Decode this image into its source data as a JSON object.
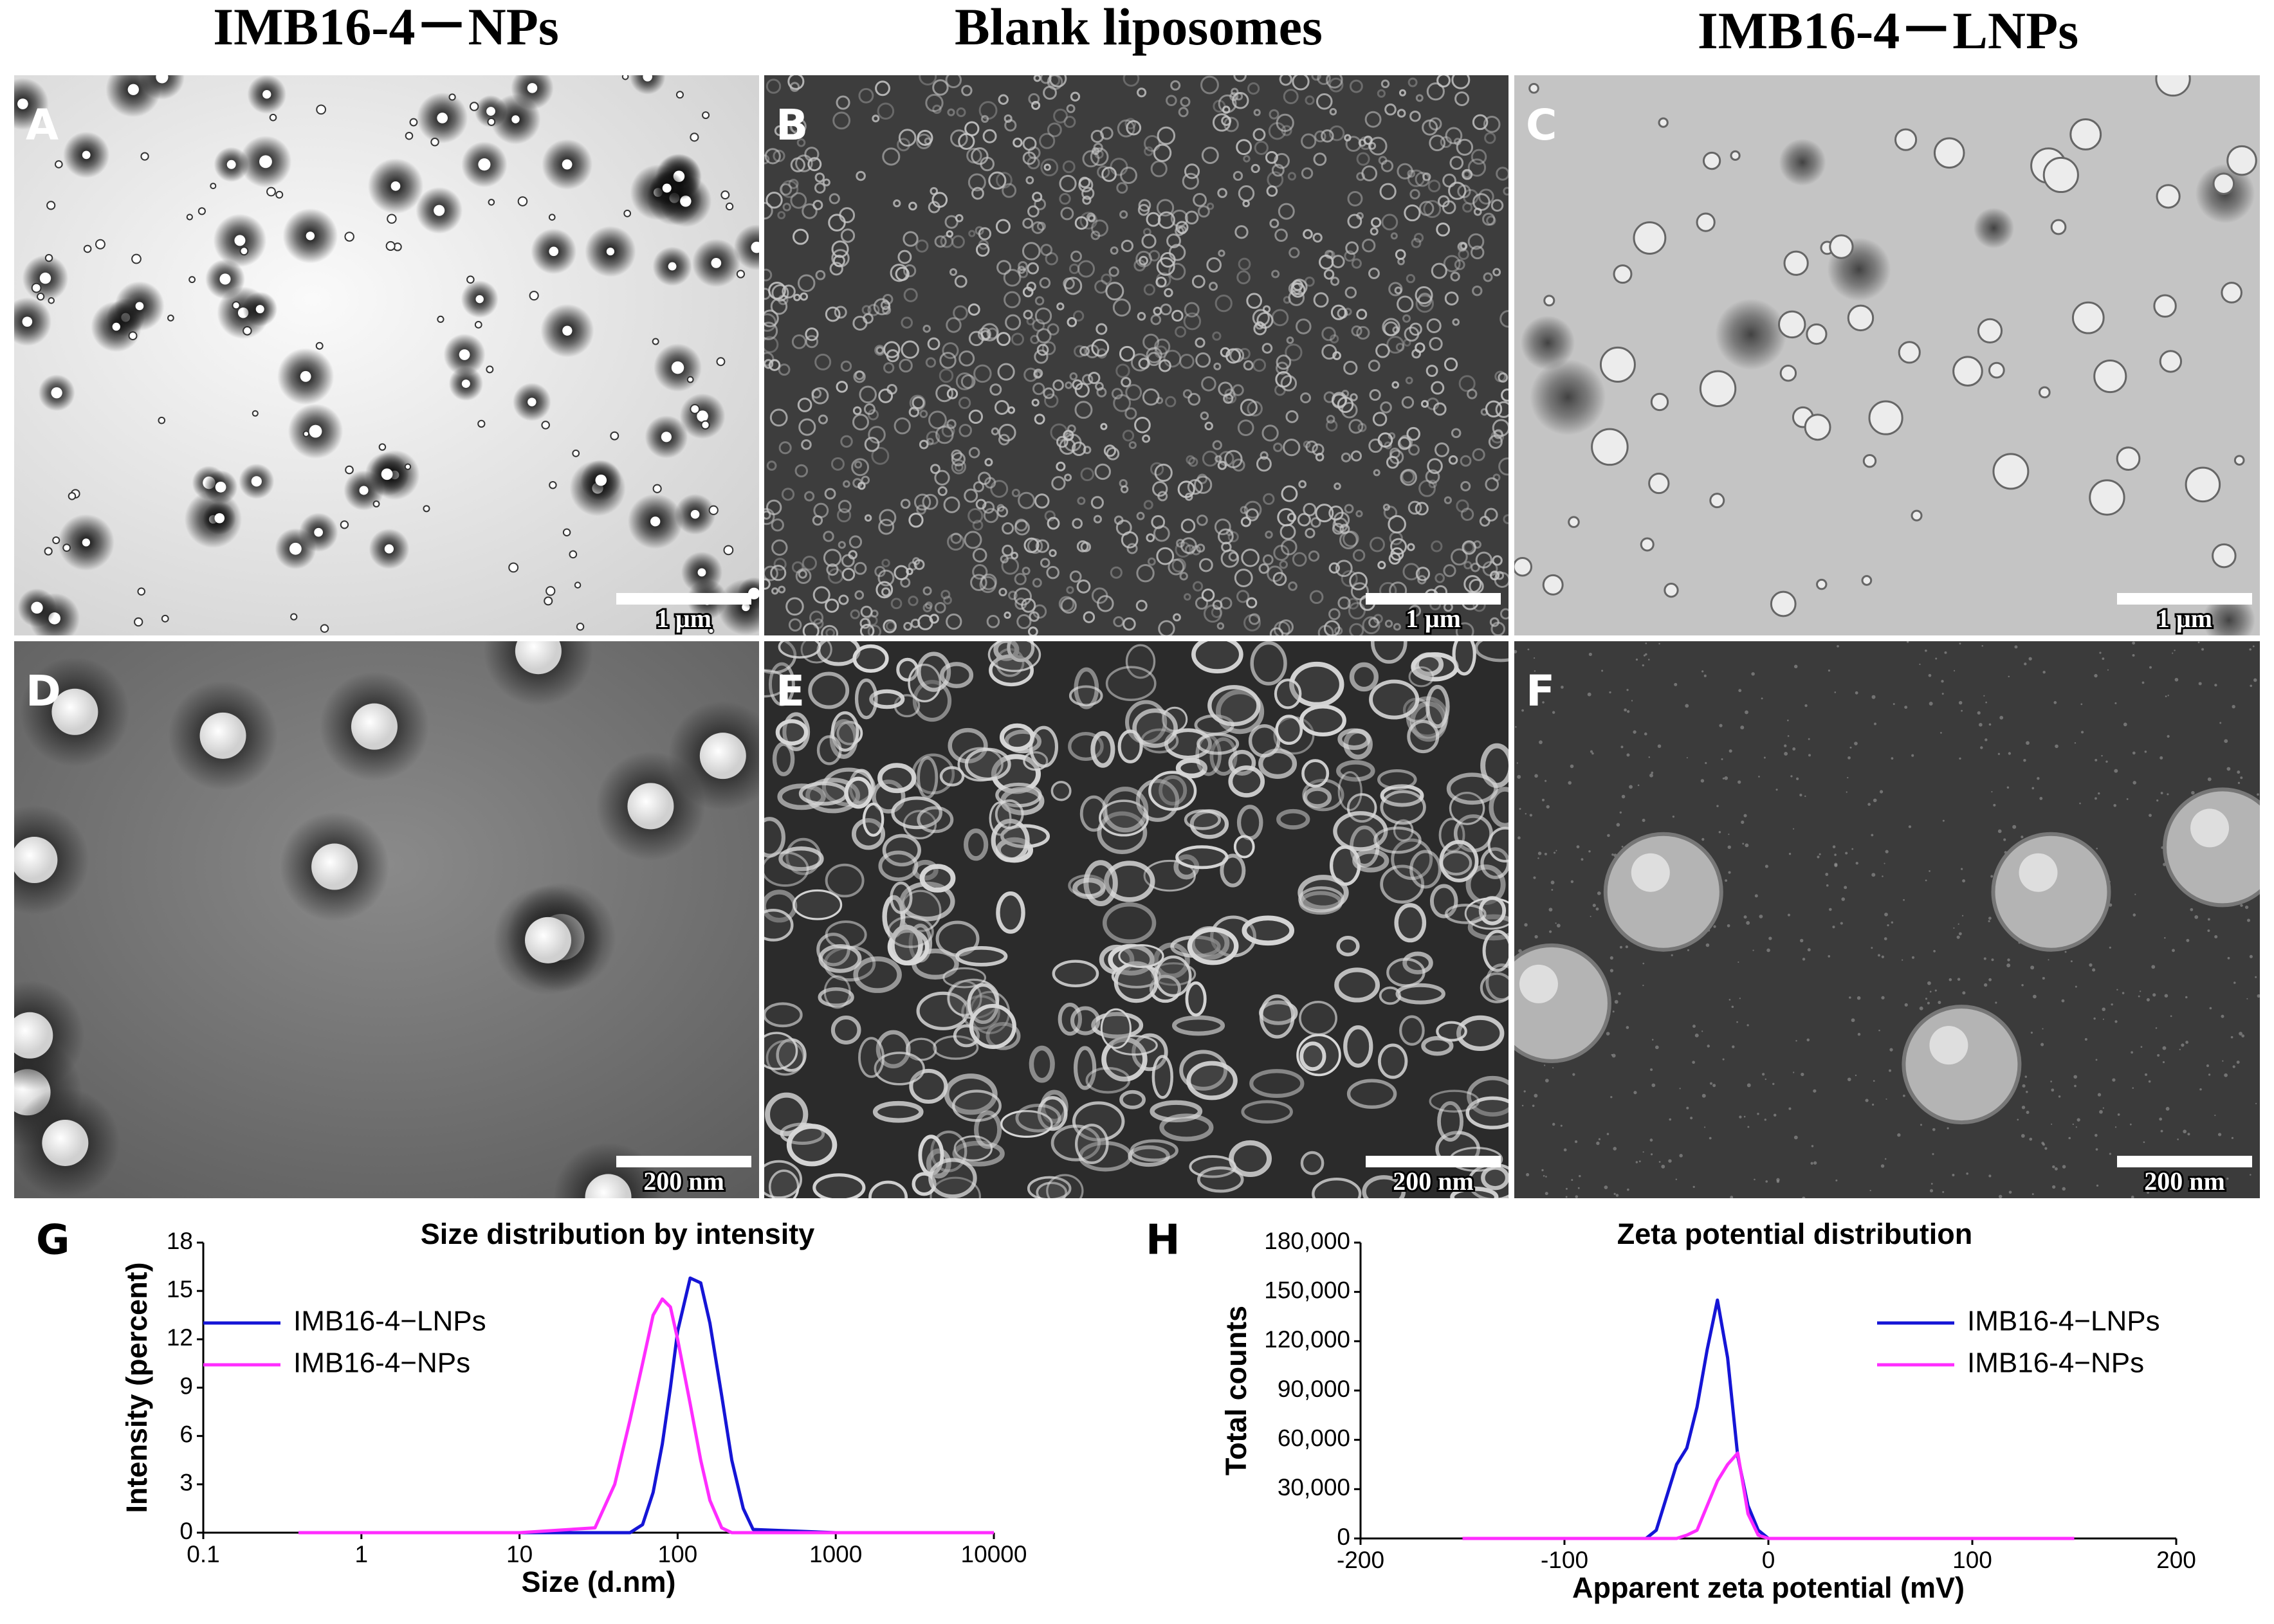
{
  "column_titles": [
    "IMB16-4－NPs",
    "Blank liposomes",
    "IMB16-4－LNPs"
  ],
  "panels": [
    {
      "label": "A",
      "scale_bar": "1 μm"
    },
    {
      "label": "B",
      "scale_bar": "1 μm"
    },
    {
      "label": "C",
      "scale_bar": "1 μm"
    },
    {
      "label": "D",
      "scale_bar": "200 nm"
    },
    {
      "label": "E",
      "scale_bar": "200 nm"
    },
    {
      "label": "F",
      "scale_bar": "200 nm"
    }
  ],
  "chart_data": [
    {
      "type": "line",
      "panel_label": "G",
      "title": "Size distribution by intensity",
      "x_label": "Size (d.nm)",
      "y_label": "Intensity (percent)",
      "xscale": "log",
      "xlim": [
        0.1,
        10000
      ],
      "xticks": [
        0.1,
        1,
        10,
        100,
        1000,
        10000
      ],
      "ylim": [
        0,
        18
      ],
      "yticks": [
        0,
        3,
        6,
        9,
        12,
        15,
        18
      ],
      "legend": "upper left",
      "x": [
        0.4,
        1,
        10,
        30,
        40,
        50,
        60,
        70,
        80,
        90,
        100,
        120,
        140,
        160,
        190,
        220,
        260,
        300,
        1000,
        10000
      ],
      "series": [
        {
          "name": "IMB16-4−LNPs",
          "color": "#1515d6",
          "values": [
            0,
            0,
            0,
            0,
            0,
            0,
            0.5,
            2.5,
            5.5,
            9,
            12.5,
            15.8,
            15.5,
            13,
            8.5,
            4.5,
            1.5,
            0.2,
            0,
            0
          ]
        },
        {
          "name": "IMB16-4−NPs",
          "color": "#ff2cff",
          "values": [
            0,
            0,
            0,
            0.3,
            3,
            7,
            10.5,
            13.5,
            14.5,
            14,
            12,
            8,
            4.5,
            2,
            0.3,
            0,
            0,
            0,
            0,
            0
          ]
        }
      ]
    },
    {
      "type": "line",
      "panel_label": "H",
      "title": "Zeta potential distribution",
      "x_label": "Apparent zeta potential (mV)",
      "y_label": "Total counts",
      "xlim": [
        -200,
        200
      ],
      "xticks": [
        -200,
        -100,
        0,
        100,
        200
      ],
      "ylim": [
        0,
        180000
      ],
      "yticks": [
        0,
        {
          "value": 30000,
          "label": "30,000"
        },
        {
          "value": 60000,
          "label": "60,000"
        },
        {
          "value": 90000,
          "label": "90,000"
        },
        {
          "value": 120000,
          "label": "120,000"
        },
        {
          "value": 150000,
          "label": "150,000"
        },
        {
          "value": 180000,
          "label": "180,000"
        }
      ],
      "legend": "upper right",
      "x": [
        -150,
        -100,
        -60,
        -55,
        -50,
        -45,
        -40,
        -35,
        -30,
        -25,
        -20,
        -15,
        -10,
        -5,
        0,
        5,
        50,
        100,
        150
      ],
      "series": [
        {
          "name": "IMB16-4−LNPs",
          "color": "#1515d6",
          "values": [
            0,
            0,
            0,
            5000,
            25000,
            45000,
            55000,
            80000,
            115000,
            145000,
            110000,
            50000,
            20000,
            5000,
            0,
            0,
            0,
            0,
            0
          ]
        },
        {
          "name": "IMB16-4−NPs",
          "color": "#ff2cff",
          "values": [
            0,
            0,
            0,
            0,
            0,
            0,
            2000,
            5000,
            20000,
            35000,
            45000,
            52000,
            15000,
            2000,
            0,
            0,
            0,
            0,
            0
          ]
        }
      ]
    }
  ]
}
